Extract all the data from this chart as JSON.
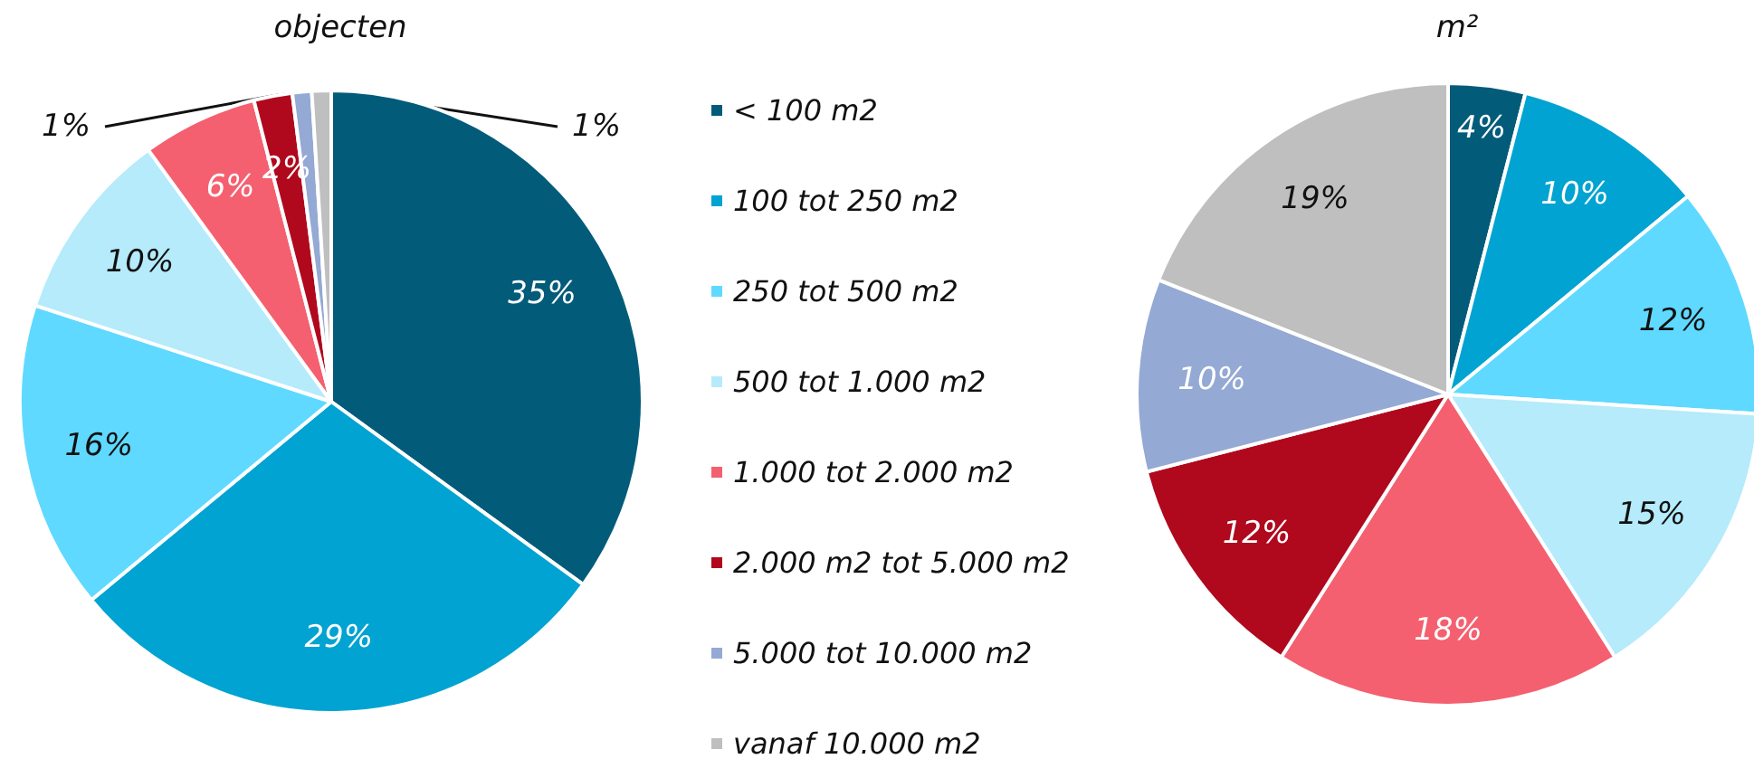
{
  "chart_data": [
    {
      "type": "pie",
      "title": "objecten",
      "legend": "right",
      "categories": [
        "< 100 m2",
        "100 tot 250 m2",
        "250 tot 500 m2",
        "500 tot 1.000 m2",
        "1.000 tot 2.000 m2",
        "2.000 m2 tot 5.000 m2",
        "5.000 tot 10.000 m2",
        "vanaf 10.000 m2"
      ],
      "values": [
        35,
        29,
        16,
        10,
        6,
        2,
        1,
        1
      ],
      "value_labels": [
        "35%",
        "29%",
        "16%",
        "10%",
        "6%",
        "2%",
        "1%",
        "1%"
      ],
      "colors": [
        "#035b7a",
        "#00a3d1",
        "#5fd9ff",
        "#b5ebfb",
        "#f4606f",
        "#b0081d",
        "#94a9d3",
        "#bfbfbf"
      ]
    },
    {
      "type": "pie",
      "title": "m²",
      "legend": false,
      "categories": [
        null,
        null,
        null,
        null,
        null,
        null,
        null,
        null
      ],
      "values": [
        4,
        10,
        12,
        15,
        18,
        12,
        10,
        19
      ],
      "value_labels": [
        "4%",
        "10%",
        "12%",
        "15%",
        "18%",
        "12%",
        "10%",
        "19%"
      ],
      "colors": [
        "#035b7a",
        "#00a3d1",
        "#5fd9ff",
        "#b5ebfb",
        "#f4606f",
        "#b0081d",
        "#94a9d3",
        "#bfbfbf"
      ]
    }
  ]
}
